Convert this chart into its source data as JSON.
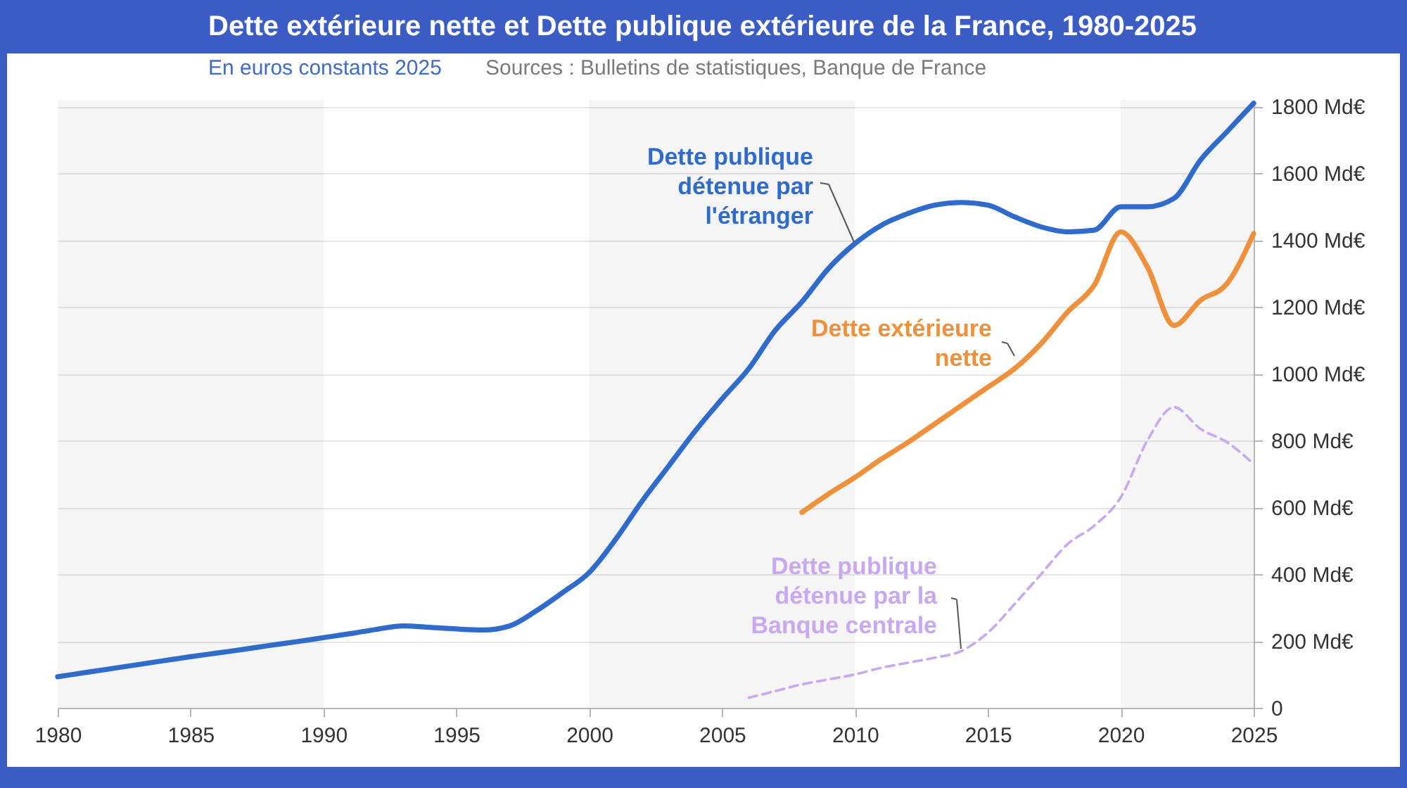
{
  "chart_data": {
    "type": "line",
    "title": "Dette extérieure nette et Dette publique extérieure de la France, 1980-2025",
    "subtitle": "En euros constants 2025",
    "annotations": [
      "Sources : Bulletins de statistiques, Banque de France"
    ],
    "xlim": [
      1980,
      2025
    ],
    "xticks": [
      1980,
      1985,
      1990,
      1995,
      2000,
      2005,
      2010,
      2015,
      2020,
      2025
    ],
    "ylim": [
      0,
      1820
    ],
    "yticks": [
      0,
      {
        "value": 200,
        "label": "200 Md€"
      },
      {
        "value": 400,
        "label": "400 Md€"
      },
      {
        "value": 600,
        "label": "600 Md€"
      },
      {
        "value": 800,
        "label": "800 Md€"
      },
      {
        "value": 1000,
        "label": "1000 Md€"
      },
      {
        "value": 1200,
        "label": "1200 Md€"
      },
      {
        "value": 1400,
        "label": "1400 Md€"
      },
      {
        "value": 1600,
        "label": "1600 Md€"
      },
      {
        "value": 1800,
        "label": "1800 Md€"
      }
    ],
    "grid": "y",
    "legend": false,
    "bands": [
      {
        "axis": "x",
        "from": 1980,
        "to": 1990,
        "color": "#f5f5f5"
      },
      {
        "axis": "x",
        "from": 2000,
        "to": 2010,
        "color": "#f5f5f5"
      },
      {
        "axis": "x",
        "from": 2020,
        "to": 2025,
        "color": "#f5f5f5"
      }
    ],
    "series": [
      {
        "name": "Dette publique détenue par l'étranger",
        "color": "#2f6bcd",
        "line_style": "solid",
        "x": [
          1980,
          1981,
          1982,
          1983,
          1984,
          1985,
          1986,
          1987,
          1988,
          1989,
          1990,
          1991,
          1992,
          1993,
          1994,
          1995,
          1996,
          1997,
          1998,
          1999,
          2000,
          2001,
          2002,
          2003,
          2004,
          2005,
          2006,
          2007,
          2008,
          2009,
          2010,
          2011,
          2012,
          2013,
          2014,
          2015,
          2016,
          2017,
          2018,
          2019,
          2020,
          2021,
          2022,
          2023,
          2024,
          2025
        ],
        "values": [
          93,
          105,
          117,
          129,
          141,
          153,
          164,
          175,
          187,
          198,
          210,
          222,
          235,
          245,
          241,
          236,
          233,
          245,
          290,
          345,
          405,
          505,
          620,
          725,
          830,
          925,
          1015,
          1130,
          1215,
          1315,
          1390,
          1445,
          1480,
          1505,
          1513,
          1505,
          1470,
          1440,
          1425,
          1430,
          1500,
          1500,
          1525,
          1640,
          1725,
          1810
        ]
      },
      {
        "name": "Dette extérieure nette",
        "color": "#f0903a",
        "line_style": "solid",
        "x": [
          2008,
          2009,
          2010,
          2011,
          2012,
          2013,
          2014,
          2015,
          2016,
          2017,
          2018,
          2019,
          2020,
          2021,
          2022,
          2023,
          2024,
          2025
        ],
        "values": [
          585,
          640,
          690,
          745,
          795,
          850,
          905,
          960,
          1015,
          1090,
          1185,
          1265,
          1425,
          1320,
          1145,
          1220,
          1270,
          1420
        ]
      },
      {
        "name": "Dette publique détenue par la Banque centrale",
        "color": "#c8a8f0",
        "line_style": "dashed",
        "x": [
          2006,
          2007,
          2008,
          2009,
          2010,
          2011,
          2012,
          2013,
          2014,
          2015,
          2016,
          2017,
          2018,
          2019,
          2020,
          2021,
          2022,
          2023,
          2024,
          2025
        ],
        "values": [
          30,
          50,
          70,
          85,
          100,
          120,
          135,
          150,
          170,
          225,
          310,
          400,
          490,
          545,
          630,
          800,
          900,
          835,
          795,
          730
        ]
      }
    ]
  }
}
